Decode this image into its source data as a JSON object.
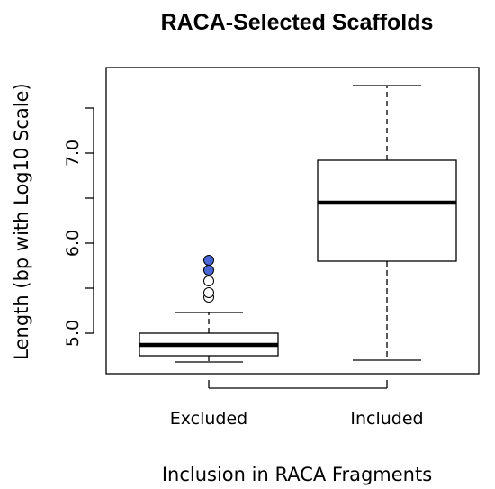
{
  "chart_data": {
    "type": "boxplot",
    "title": "RACA-Selected Scaffolds",
    "xlabel": "Inclusion in RACA Fragments",
    "ylabel": "Length (bp with Log10 Scale)",
    "ylim": [
      4.55,
      7.95
    ],
    "yticks": [
      5.0,
      5.5,
      6.0,
      6.5,
      7.0,
      7.5
    ],
    "ytick_labels": [
      "5.0",
      "",
      "6.0",
      "",
      "7.0",
      ""
    ],
    "grid": false,
    "categories": [
      "Excluded",
      "Included"
    ],
    "boxes": [
      {
        "category": "Excluded",
        "whisker_low": 4.68,
        "q1": 4.75,
        "median": 4.87,
        "q3": 5.0,
        "whisker_high": 5.23,
        "outliers": [
          {
            "value": 5.4,
            "fill": "#ffffff"
          },
          {
            "value": 5.45,
            "fill": "#ffffff"
          },
          {
            "value": 5.58,
            "fill": "#ffffff"
          },
          {
            "value": 5.7,
            "fill": "#4a67d6"
          },
          {
            "value": 5.81,
            "fill": "#4a67d6"
          }
        ]
      },
      {
        "category": "Included",
        "whisker_low": 4.7,
        "q1": 5.8,
        "median": 6.45,
        "q3": 6.92,
        "whisker_high": 7.75,
        "outliers": []
      }
    ],
    "colors": {
      "box_fill": "#ffffff",
      "stroke": "#000000",
      "highlight": "#4a67d6"
    }
  }
}
